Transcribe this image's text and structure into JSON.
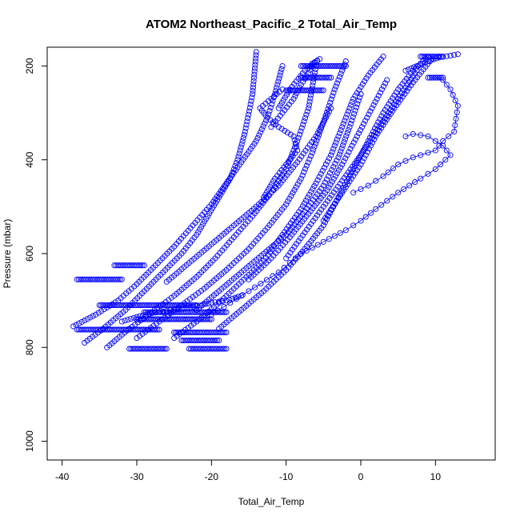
{
  "chart_data": {
    "type": "scatter",
    "title": "ATOM2 Northeast_Pacific_2 Total_Air_Temp",
    "xlabel": "Total_Air_Temp",
    "ylabel": "Pressure (mbar)",
    "xlim": [
      -42,
      18
    ],
    "ylim": [
      1040,
      160
    ],
    "y_reversed": true,
    "grid": false,
    "legend": "none",
    "x_ticks": [
      -40,
      -30,
      -20,
      -10,
      0,
      10
    ],
    "x_tick_labels": [
      "-40",
      "-30",
      "-20",
      "-10",
      "0",
      "10"
    ],
    "y_ticks": [
      200,
      400,
      600,
      800,
      1000
    ],
    "y_tick_labels": [
      "200",
      "400",
      "600",
      "800",
      "1000"
    ],
    "marker": "open-circle",
    "color": "#0000ff",
    "series": [
      {
        "style": "points",
        "x": [
          -37,
          -34.5,
          -31.5,
          -29,
          -26.5,
          -24,
          -22,
          -20.5,
          -19,
          -17.5,
          -16.5,
          -15.5,
          -14.5,
          -14
        ],
        "y": [
          790,
          760,
          720,
          680,
          640,
          600,
          560,
          520,
          480,
          440,
          400,
          340,
          260,
          170
        ]
      },
      {
        "style": "points",
        "x": [
          -38.5,
          -35.5,
          -32.5,
          -30,
          -27.5,
          -25,
          -22.5,
          -20,
          -18,
          -16,
          -14,
          -12.5,
          -11.5,
          -10.5
        ],
        "y": [
          755,
          730,
          700,
          665,
          625,
          585,
          540,
          495,
          450,
          405,
          360,
          310,
          260,
          200
        ]
      },
      {
        "style": "points",
        "x": [
          -34,
          -31,
          -28,
          -25,
          -22,
          -19.5,
          -17,
          -14.5,
          -12,
          -10,
          -8.5,
          -7,
          -6
        ],
        "y": [
          800,
          760,
          725,
          690,
          650,
          610,
          565,
          520,
          470,
          420,
          360,
          290,
          200
        ]
      },
      {
        "style": "points",
        "x": [
          -30,
          -27,
          -24,
          -21,
          -18,
          -15,
          -12.5,
          -10,
          -8,
          -6.5,
          -5,
          -3.5,
          -2
        ],
        "y": [
          780,
          745,
          710,
          675,
          635,
          590,
          545,
          495,
          440,
          385,
          320,
          250,
          190
        ]
      },
      {
        "style": "points",
        "x": [
          -25,
          -22,
          -19,
          -16,
          -13,
          -10.5,
          -8,
          -6,
          -4,
          -2.5,
          -1,
          1,
          3
        ],
        "y": [
          780,
          745,
          705,
          660,
          615,
          560,
          505,
          450,
          390,
          330,
          270,
          220,
          180
        ]
      },
      {
        "style": "points",
        "x": [
          -19,
          -16,
          -13,
          -10,
          -7.5,
          -5,
          -3,
          -1,
          1,
          3,
          5,
          7,
          9
        ],
        "y": [
          760,
          720,
          680,
          635,
          590,
          540,
          480,
          420,
          360,
          300,
          250,
          210,
          180
        ]
      },
      {
        "style": "points",
        "x": [
          -26,
          -23,
          -20,
          -17,
          -14,
          -11,
          -8.5,
          -6,
          -4
        ],
        "y": [
          660,
          620,
          580,
          540,
          500,
          455,
          405,
          350,
          290
        ]
      },
      {
        "style": "points",
        "x": [
          -22,
          -19,
          -16,
          -13,
          -10,
          -7.5,
          -5,
          -3,
          -1.5,
          0
        ],
        "y": [
          720,
          680,
          640,
          600,
          560,
          510,
          455,
          395,
          330,
          260
        ]
      },
      {
        "style": "points",
        "x": [
          -15,
          -12,
          -9.5,
          -7,
          -4.5,
          -2.5,
          -0.5,
          1.5,
          3.5
        ],
        "y": [
          655,
          610,
          565,
          515,
          465,
          410,
          350,
          290,
          230
        ]
      },
      {
        "style": "points",
        "x": [
          -10,
          -7.5,
          -5,
          -2.5,
          0,
          2.5,
          5,
          7.5
        ],
        "y": [
          610,
          555,
          500,
          445,
          390,
          330,
          270,
          210
        ]
      },
      {
        "style": "points",
        "x": [
          -5,
          -2.5,
          0,
          2,
          4.5,
          7,
          9.5
        ],
        "y": [
          530,
          470,
          410,
          350,
          290,
          235,
          185
        ]
      },
      {
        "style": "points",
        "x": [
          -13,
          -11.5,
          -10,
          -8.5,
          -9,
          -11,
          -12.5,
          -13.5,
          -12,
          -10.5
        ],
        "y": [
          480,
          440,
          410,
          380,
          350,
          330,
          310,
          290,
          270,
          250
        ]
      },
      {
        "style": "points",
        "x": [
          -16,
          -18,
          -20,
          -22,
          -24,
          -26,
          -28,
          -30,
          -32
        ],
        "y": [
          690,
          700,
          705,
          712,
          718,
          722,
          727,
          735,
          745
        ]
      },
      {
        "style": "line-points",
        "x": [
          -20,
          -15,
          -11,
          -8,
          -5,
          -2,
          0,
          2,
          5,
          8,
          10,
          12,
          11,
          9,
          7,
          6
        ],
        "y": [
          730,
          680,
          640,
          600,
          575,
          550,
          530,
          505,
          470,
          440,
          420,
          390,
          370,
          350,
          345,
          350
        ]
      },
      {
        "style": "line-points",
        "x": [
          -1,
          1,
          3,
          5,
          7,
          8,
          10,
          11,
          12.5,
          13,
          12,
          11,
          10
        ],
        "y": [
          470,
          455,
          435,
          410,
          395,
          390,
          380,
          360,
          340,
          285,
          250,
          230,
          225
        ]
      },
      {
        "style": "points",
        "x": [
          -12,
          -10.5,
          -9,
          -8,
          -7,
          -6.5,
          -5.5,
          -7.5,
          -9.5,
          -11
        ],
        "y": [
          330,
          300,
          270,
          240,
          215,
          195,
          185,
          210,
          250,
          290
        ]
      },
      {
        "style": "points",
        "x": [
          6,
          7.5,
          9,
          10.5,
          12,
          13
        ],
        "y": [
          210,
          200,
          190,
          182,
          178,
          175
        ]
      },
      {
        "style": "hline",
        "y": 655,
        "x_from": -38,
        "x_to": -32
      },
      {
        "style": "hline",
        "y": 625,
        "x_from": -33,
        "x_to": -29
      },
      {
        "style": "hline",
        "y": 710,
        "x_from": -35,
        "x_to": -22
      },
      {
        "style": "hline",
        "y": 725,
        "x_from": -29,
        "x_to": -18
      },
      {
        "style": "hline",
        "y": 740,
        "x_from": -30,
        "x_to": -20
      },
      {
        "style": "hline",
        "y": 762,
        "x_from": -38,
        "x_to": -27
      },
      {
        "style": "hline",
        "y": 768,
        "x_from": -25,
        "x_to": -18
      },
      {
        "style": "hline",
        "y": 785,
        "x_from": -24,
        "x_to": -19
      },
      {
        "style": "hline",
        "y": 803,
        "x_from": -31,
        "x_to": -26
      },
      {
        "style": "hline",
        "y": 803,
        "x_from": -23,
        "x_to": -18
      },
      {
        "style": "hline",
        "y": 252,
        "x_from": -10,
        "x_to": -5
      },
      {
        "style": "hline",
        "y": 225,
        "x_from": -8,
        "x_to": -4
      },
      {
        "style": "hline",
        "y": 200,
        "x_from": -8,
        "x_to": -2
      },
      {
        "style": "hline",
        "y": 225,
        "x_from": 9,
        "x_to": 11
      },
      {
        "style": "hline",
        "y": 180,
        "x_from": 8,
        "x_to": 11
      }
    ]
  }
}
